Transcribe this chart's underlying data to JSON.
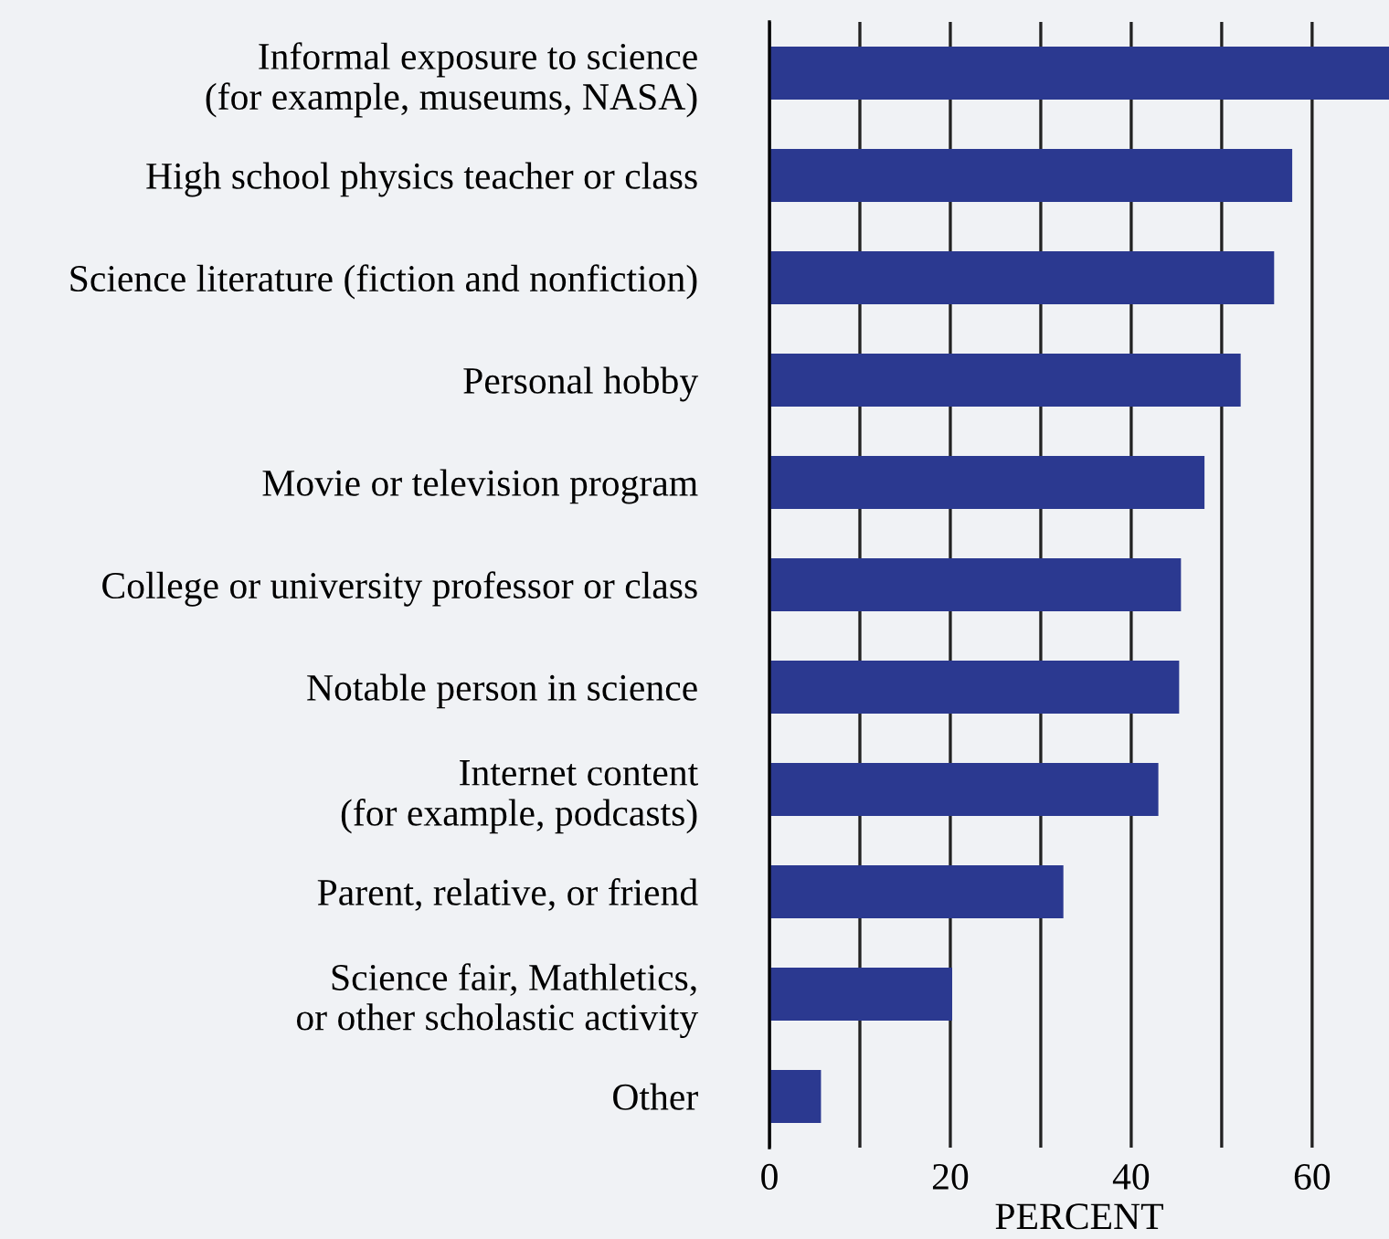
{
  "chart_data": {
    "type": "bar",
    "orientation": "horizontal",
    "xlabel": "PERCENT",
    "categories": [
      "Informal exposure to science\n(for example, museums, NASA)",
      "High school physics teacher or class",
      "Science literature (fiction and nonfiction)",
      "Personal hobby",
      "Movie or television program",
      "College or university professor or class",
      "Notable person in science",
      "Internet content\n(for example, podcasts)",
      "Parent, relative, or friend",
      "Science fair, Mathletics,\nor other scholastic activity",
      "Other"
    ],
    "values": [
      68.5,
      57.8,
      55.8,
      52.1,
      48.1,
      45.5,
      45.3,
      43.0,
      32.5,
      20.2,
      5.7
    ],
    "color": "#2b3990",
    "xlim": [
      0,
      68.5
    ],
    "xticks": [
      0,
      {
        "value": 10,
        "label": null
      },
      20,
      {
        "value": 30,
        "label": null
      },
      40,
      {
        "value": 50,
        "label": null
      },
      60
    ],
    "grid": "x"
  }
}
